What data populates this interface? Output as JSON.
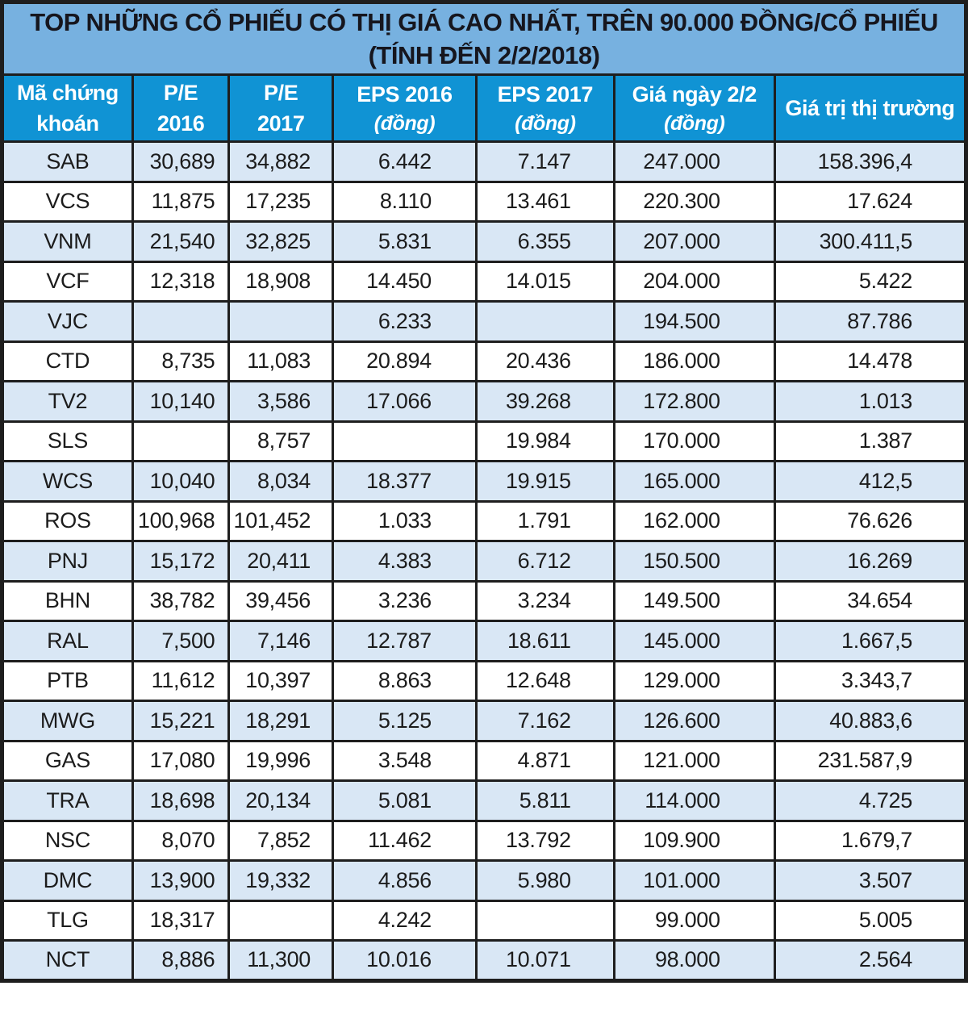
{
  "table": {
    "title_line1": "TOP NHỮNG CỔ PHIẾU CÓ THỊ GIÁ CAO NHẤT, TRÊN 90.000 ĐỒNG/CỔ PHIẾU",
    "title_line2": "(TÍNH ĐẾN 2/2/2018)",
    "columns": [
      {
        "id": "ma-chung-khoan",
        "label1": "Mã chứng",
        "label2": "khoán",
        "italic": false
      },
      {
        "id": "pe-2016",
        "label1": "P/E",
        "label2": "2016",
        "italic": false
      },
      {
        "id": "pe-2017",
        "label1": "P/E",
        "label2": "2017",
        "italic": false
      },
      {
        "id": "eps-2016",
        "label1": "EPS 2016",
        "label2": "(đồng)",
        "italic": true
      },
      {
        "id": "eps-2017",
        "label1": "EPS 2017",
        "label2": "(đồng)",
        "italic": true
      },
      {
        "id": "gia-ngay-2-2",
        "label1": "Giá ngày 2/2",
        "label2": "(đồng)",
        "italic": true
      },
      {
        "id": "gia-tri-thi-truong",
        "label1": "Giá trị thị trường",
        "label2": "",
        "italic": false
      }
    ],
    "rows": [
      [
        "SAB",
        "30,689",
        "34,882",
        "6.442",
        "7.147",
        "247.000",
        "158.396,4"
      ],
      [
        "VCS",
        "11,875",
        "17,235",
        "8.110",
        "13.461",
        "220.300",
        "17.624"
      ],
      [
        "VNM",
        "21,540",
        "32,825",
        "5.831",
        "6.355",
        "207.000",
        "300.411,5"
      ],
      [
        "VCF",
        "12,318",
        "18,908",
        "14.450",
        "14.015",
        "204.000",
        "5.422"
      ],
      [
        "VJC",
        "",
        "",
        "6.233",
        "",
        "194.500",
        "87.786"
      ],
      [
        "CTD",
        "8,735",
        "11,083",
        "20.894",
        "20.436",
        "186.000",
        "14.478"
      ],
      [
        "TV2",
        "10,140",
        "3,586",
        "17.066",
        "39.268",
        "172.800",
        "1.013"
      ],
      [
        "SLS",
        "",
        "8,757",
        "",
        "19.984",
        "170.000",
        "1.387"
      ],
      [
        "WCS",
        "10,040",
        "8,034",
        "18.377",
        "19.915",
        "165.000",
        "412,5"
      ],
      [
        "ROS",
        "100,968",
        "101,452",
        "1.033",
        "1.791",
        "162.000",
        "76.626"
      ],
      [
        "PNJ",
        "15,172",
        "20,411",
        "4.383",
        "6.712",
        "150.500",
        "16.269"
      ],
      [
        "BHN",
        "38,782",
        "39,456",
        "3.236",
        "3.234",
        "149.500",
        "34.654"
      ],
      [
        "RAL",
        "7,500",
        "7,146",
        "12.787",
        "18.611",
        "145.000",
        "1.667,5"
      ],
      [
        "PTB",
        "11,612",
        "10,397",
        "8.863",
        "12.648",
        "129.000",
        "3.343,7"
      ],
      [
        "MWG",
        "15,221",
        "18,291",
        "5.125",
        "7.162",
        "126.600",
        "40.883,6"
      ],
      [
        "GAS",
        "17,080",
        "19,996",
        "3.548",
        "4.871",
        "121.000",
        "231.587,9"
      ],
      [
        "TRA",
        "18,698",
        "20,134",
        "5.081",
        "5.811",
        "114.000",
        "4.725"
      ],
      [
        "NSC",
        "8,070",
        "7,852",
        "11.462",
        "13.792",
        "109.900",
        "1.679,7"
      ],
      [
        "DMC",
        "13,900",
        "19,332",
        "4.856",
        "5.980",
        "101.000",
        "3.507"
      ],
      [
        "TLG",
        "18,317",
        "",
        "4.242",
        "",
        "99.000",
        "5.005"
      ],
      [
        "NCT",
        "8,886",
        "11,300",
        "10.016",
        "10.071",
        "98.000",
        "2.564"
      ]
    ]
  },
  "colors": {
    "banner_bg": "#77B1E0",
    "header_bg": "#1093D4",
    "alt_row_bg": "#D9E7F5",
    "row_bg": "#ffffff",
    "border": "#1e1e1e",
    "title_text": "#16161e",
    "header_text": "#ffffff",
    "cell_text": "#1c1c1c"
  },
  "chart_data": {
    "type": "table",
    "title": "TOP NHỮNG CỔ PHIẾU CÓ THỊ GIÁ CAO NHẤT, TRÊN 90.000 ĐỒNG/CỔ PHIẾU (TÍNH ĐẾN 2/2/2018)",
    "columns": [
      "Mã chứng khoán",
      "P/E 2016",
      "P/E 2017",
      "EPS 2016 (đồng)",
      "EPS 2017 (đồng)",
      "Giá ngày 2/2 (đồng)",
      "Giá trị thị trường"
    ],
    "rows": [
      [
        "SAB",
        "30,689",
        "34,882",
        "6.442",
        "7.147",
        "247.000",
        "158.396,4"
      ],
      [
        "VCS",
        "11,875",
        "17,235",
        "8.110",
        "13.461",
        "220.300",
        "17.624"
      ],
      [
        "VNM",
        "21,540",
        "32,825",
        "5.831",
        "6.355",
        "207.000",
        "300.411,5"
      ],
      [
        "VCF",
        "12,318",
        "18,908",
        "14.450",
        "14.015",
        "204.000",
        "5.422"
      ],
      [
        "VJC",
        "",
        "",
        "6.233",
        "",
        "194.500",
        "87.786"
      ],
      [
        "CTD",
        "8,735",
        "11,083",
        "20.894",
        "20.436",
        "186.000",
        "14.478"
      ],
      [
        "TV2",
        "10,140",
        "3,586",
        "17.066",
        "39.268",
        "172.800",
        "1.013"
      ],
      [
        "SLS",
        "",
        "8,757",
        "",
        "19.984",
        "170.000",
        "1.387"
      ],
      [
        "WCS",
        "10,040",
        "8,034",
        "18.377",
        "19.915",
        "165.000",
        "412,5"
      ],
      [
        "ROS",
        "100,968",
        "101,452",
        "1.033",
        "1.791",
        "162.000",
        "76.626"
      ],
      [
        "PNJ",
        "15,172",
        "20,411",
        "4.383",
        "6.712",
        "150.500",
        "16.269"
      ],
      [
        "BHN",
        "38,782",
        "39,456",
        "3.236",
        "3.234",
        "149.500",
        "34.654"
      ],
      [
        "RAL",
        "7,500",
        "7,146",
        "12.787",
        "18.611",
        "145.000",
        "1.667,5"
      ],
      [
        "PTB",
        "11,612",
        "10,397",
        "8.863",
        "12.648",
        "129.000",
        "3.343,7"
      ],
      [
        "MWG",
        "15,221",
        "18,291",
        "5.125",
        "7.162",
        "126.600",
        "40.883,6"
      ],
      [
        "GAS",
        "17,080",
        "19,996",
        "3.548",
        "4.871",
        "121.000",
        "231.587,9"
      ],
      [
        "TRA",
        "18,698",
        "20,134",
        "5.081",
        "5.811",
        "114.000",
        "4.725"
      ],
      [
        "NSC",
        "8,070",
        "7,852",
        "11.462",
        "13.792",
        "109.900",
        "1.679,7"
      ],
      [
        "DMC",
        "13,900",
        "19,332",
        "4.856",
        "5.980",
        "101.000",
        "3.507"
      ],
      [
        "TLG",
        "18,317",
        "",
        "4.242",
        "",
        "99.000",
        "5.005"
      ],
      [
        "NCT",
        "8,886",
        "11,300",
        "10.016",
        "10.071",
        "98.000",
        "2.564"
      ]
    ]
  }
}
